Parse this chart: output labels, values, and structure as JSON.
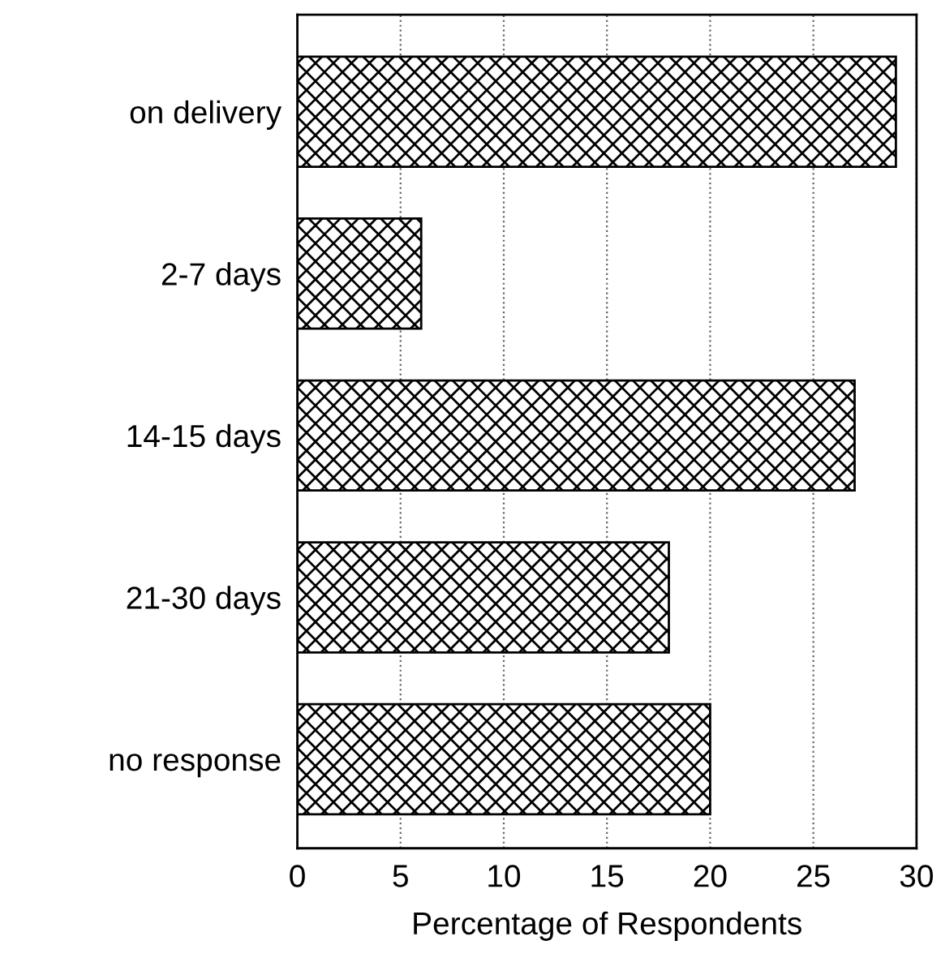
{
  "chart_data": {
    "type": "bar",
    "orientation": "horizontal",
    "xlabel": "Percentage of Respondents",
    "categories": [
      "on delivery",
      "2-7 days",
      "14-15 days",
      "21-30 days",
      "no response"
    ],
    "values": [
      29,
      6,
      27,
      18,
      20
    ],
    "color": "#000000",
    "xlim": [
      0,
      30
    ],
    "xticks": [
      0,
      5,
      10,
      15,
      20,
      25,
      30
    ],
    "grid": "x"
  }
}
